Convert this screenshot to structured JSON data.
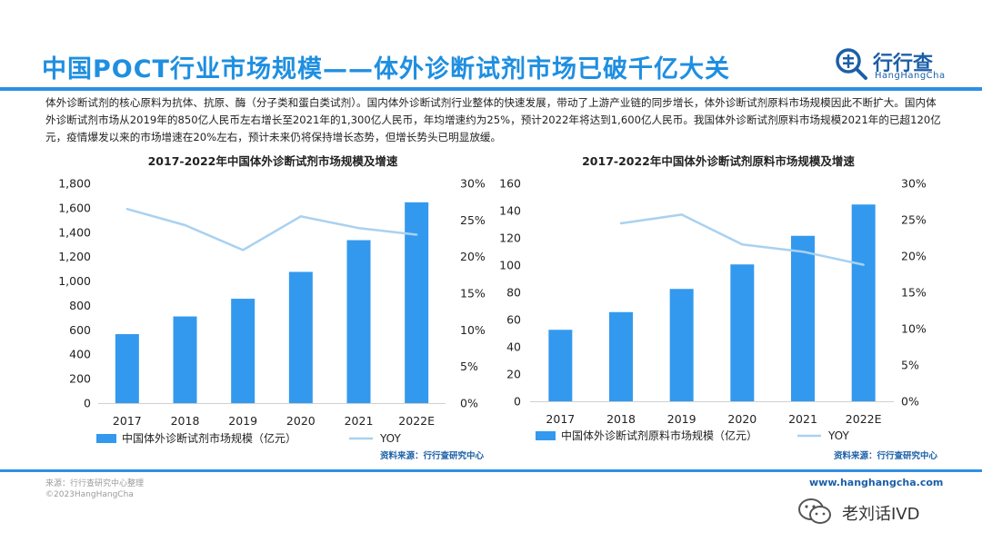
{
  "header": {
    "title": "中国POCT行业市场规模——体外诊断试剂市场已破千亿大关",
    "logo_name": "行行查",
    "logo_sub": "HangHangCha"
  },
  "intro": "体外诊断试剂的核心原料为抗体、抗原、酶（分子类和蛋白类试剂）。国内体外诊断试剂行业整体的快速发展，带动了上游产业链的同步增长，体外诊断试剂原料市场规模因此不断扩大。国内体外诊断试剂市场从2019年的850亿人民币左右增长至2021年的1,300亿人民币，年均增速约为25%，预计2022年将达到1,600亿人民币。我国体外诊断试剂原料市场规模2021年的已超120亿元，疫情爆发以来的市场增速在20%左右，预计未来仍将保持增长态势，但增长势头已明显放缓。",
  "colors": {
    "accent": "#1f8fe0",
    "bar": "#3399ee",
    "line": "#a9d1f0",
    "brand": "#1c5fa8"
  },
  "chart_data": [
    {
      "type": "bar",
      "title": "2017-2022年中国体外诊断试剂市场规模及增速",
      "categories": [
        "2017",
        "2018",
        "2019",
        "2020",
        "2021",
        "2022E"
      ],
      "series": [
        {
          "name": "中国体外诊断试剂市场规模（亿元）",
          "type": "bar",
          "axis": "left",
          "values": [
            565,
            710,
            855,
            1075,
            1335,
            1645
          ]
        },
        {
          "name": "YOY",
          "type": "line",
          "axis": "right",
          "values": [
            26.5,
            24.3,
            20.9,
            25.5,
            23.9,
            23.0
          ]
        }
      ],
      "ylim": [
        0,
        1800
      ],
      "y_ticks": [
        "0",
        "200",
        "400",
        "600",
        "800",
        "1,000",
        "1,200",
        "1,400",
        "1,600",
        "1,800"
      ],
      "y2lim": [
        0,
        30
      ],
      "y2_ticks": [
        "0%",
        "5%",
        "10%",
        "15%",
        "20%",
        "25%",
        "30%"
      ],
      "source": "资料来源：行行查研究中心"
    },
    {
      "type": "bar",
      "title": "2017-2022年中国体外诊断试剂原料市场规模及增速",
      "categories": [
        "2017",
        "2018",
        "2019",
        "2020",
        "2021",
        "2022E"
      ],
      "series": [
        {
          "name": "中国体外诊断试剂原料市场规模（亿元）",
          "type": "bar",
          "axis": "left",
          "values": [
            52.5,
            65.5,
            82.5,
            100.5,
            121.5,
            144.5
          ]
        },
        {
          "name": "YOY",
          "type": "line",
          "axis": "right",
          "values": [
            null,
            24.5,
            25.7,
            21.6,
            20.6,
            18.8
          ]
        }
      ],
      "ylim": [
        0,
        160
      ],
      "y_ticks": [
        "0",
        "20",
        "40",
        "60",
        "80",
        "100",
        "120",
        "140",
        "160"
      ],
      "y2lim": [
        0,
        30
      ],
      "y2_ticks": [
        "0%",
        "5%",
        "10%",
        "15%",
        "20%",
        "25%",
        "30%"
      ],
      "source": "资料来源：行行查研究中心"
    }
  ],
  "footer": {
    "note": "来源：行行查研究中心整理",
    "copyright": "©2023HangHangCha",
    "site": "www.hanghangcha.com",
    "watermark": "老刘话IVD"
  }
}
